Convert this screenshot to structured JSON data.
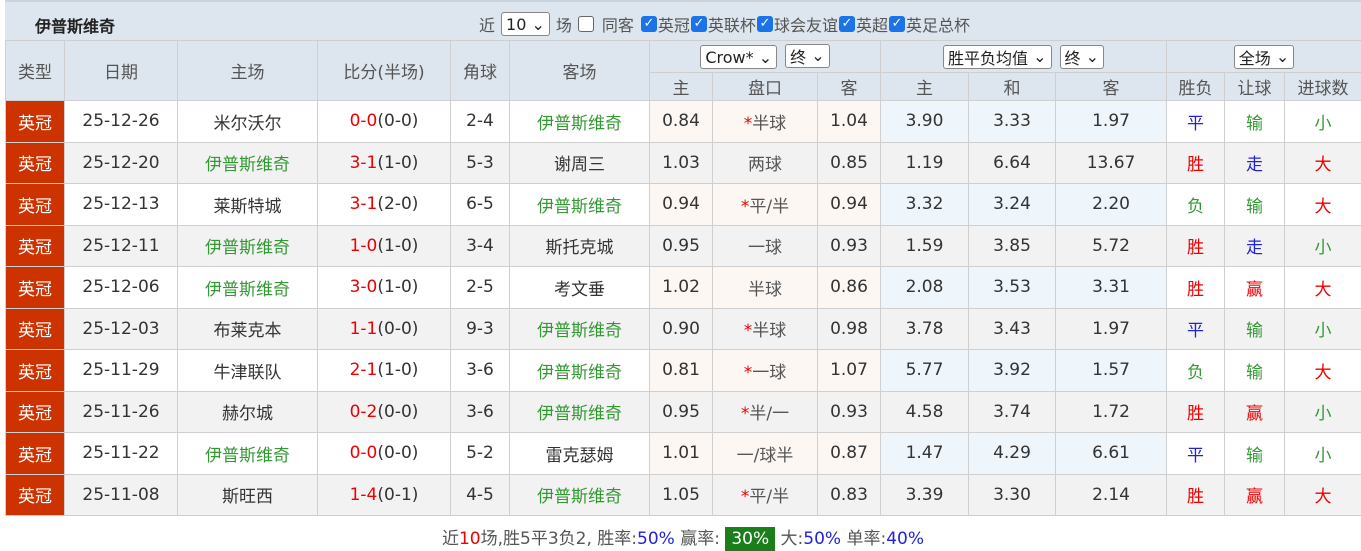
{
  "title": "伊普斯维奇",
  "filters": {
    "near": "近",
    "count": "10",
    "matches": "场",
    "same_away": "同客",
    "leagues": [
      {
        "label": "英冠",
        "checked": true
      },
      {
        "label": "英联杯",
        "checked": true
      },
      {
        "label": "球会友谊",
        "checked": true
      },
      {
        "label": "英超",
        "checked": true
      },
      {
        "label": "英足总杯",
        "checked": true
      }
    ]
  },
  "headers": {
    "type": "类型",
    "date": "日期",
    "home": "主场",
    "score": "比分(半场)",
    "corner": "角球",
    "away": "客场",
    "company": "Crow*",
    "odds_stage": "终",
    "euro": "胜平负均值",
    "euro_stage": "终",
    "scope": "全场",
    "sub": [
      "主",
      "盘口",
      "客",
      "主",
      "和",
      "客",
      "胜负",
      "让球",
      "进球数"
    ]
  },
  "colors": {
    "type_bg": "#cc3300",
    "team_highlight": "#339933",
    "win": "#e00000",
    "draw": "#2222dd",
    "lose": "#339933",
    "badge": "#1a7f1a"
  },
  "rows": [
    {
      "type": "英冠",
      "date": "25-12-26",
      "home": "米尔沃尔",
      "score": "0-0",
      "half": "(0-0)",
      "corner": "2-4",
      "away": "伊普斯维奇",
      "oh": "0.84",
      "star": "*",
      "hcp": "半球",
      "oa": "1.04",
      "eh": "3.90",
      "ed": "3.33",
      "ea": "1.97",
      "res": "平",
      "hres": "输",
      "goals": "小",
      "hl": "away"
    },
    {
      "type": "英冠",
      "date": "25-12-20",
      "home": "伊普斯维奇",
      "score": "3-1",
      "half": "(1-0)",
      "corner": "5-3",
      "away": "谢周三",
      "oh": "1.03",
      "star": "",
      "hcp": "两球",
      "oa": "0.85",
      "eh": "1.19",
      "ed": "6.64",
      "ea": "13.67",
      "res": "胜",
      "hres": "走",
      "goals": "大",
      "hl": "home"
    },
    {
      "type": "英冠",
      "date": "25-12-13",
      "home": "莱斯特城",
      "score": "3-1",
      "half": "(2-0)",
      "corner": "6-5",
      "away": "伊普斯维奇",
      "oh": "0.94",
      "star": "*",
      "hcp": "平/半",
      "oa": "0.94",
      "eh": "3.32",
      "ed": "3.24",
      "ea": "2.20",
      "res": "负",
      "hres": "输",
      "goals": "大",
      "hl": "away"
    },
    {
      "type": "英冠",
      "date": "25-12-11",
      "home": "伊普斯维奇",
      "score": "1-0",
      "half": "(1-0)",
      "corner": "3-4",
      "away": "斯托克城",
      "oh": "0.95",
      "star": "",
      "hcp": "一球",
      "oa": "0.93",
      "eh": "1.59",
      "ed": "3.85",
      "ea": "5.72",
      "res": "胜",
      "hres": "走",
      "goals": "小",
      "hl": "home"
    },
    {
      "type": "英冠",
      "date": "25-12-06",
      "home": "伊普斯维奇",
      "score": "3-0",
      "half": "(1-0)",
      "corner": "2-5",
      "away": "考文垂",
      "oh": "1.02",
      "star": "",
      "hcp": "半球",
      "oa": "0.86",
      "eh": "2.08",
      "ed": "3.53",
      "ea": "3.31",
      "res": "胜",
      "hres": "赢",
      "goals": "大",
      "hl": "home"
    },
    {
      "type": "英冠",
      "date": "25-12-03",
      "home": "布莱克本",
      "score": "1-1",
      "half": "(0-0)",
      "corner": "9-3",
      "away": "伊普斯维奇",
      "oh": "0.90",
      "star": "*",
      "hcp": "半球",
      "oa": "0.98",
      "eh": "3.78",
      "ed": "3.43",
      "ea": "1.97",
      "res": "平",
      "hres": "输",
      "goals": "小",
      "hl": "away"
    },
    {
      "type": "英冠",
      "date": "25-11-29",
      "home": "牛津联队",
      "score": "2-1",
      "half": "(1-0)",
      "corner": "3-6",
      "away": "伊普斯维奇",
      "oh": "0.81",
      "star": "*",
      "hcp": "一球",
      "oa": "1.07",
      "eh": "5.77",
      "ed": "3.92",
      "ea": "1.57",
      "res": "负",
      "hres": "输",
      "goals": "大",
      "hl": "away"
    },
    {
      "type": "英冠",
      "date": "25-11-26",
      "home": "赫尔城",
      "score": "0-2",
      "half": "(0-0)",
      "corner": "3-6",
      "away": "伊普斯维奇",
      "oh": "0.95",
      "star": "*",
      "hcp": "半/一",
      "oa": "0.93",
      "eh": "4.58",
      "ed": "3.74",
      "ea": "1.72",
      "res": "胜",
      "hres": "赢",
      "goals": "小",
      "hl": "away"
    },
    {
      "type": "英冠",
      "date": "25-11-22",
      "home": "伊普斯维奇",
      "score": "0-0",
      "half": "(0-0)",
      "corner": "5-2",
      "away": "雷克瑟姆",
      "oh": "1.01",
      "star": "",
      "hcp": "一/球半",
      "oa": "0.87",
      "eh": "1.47",
      "ed": "4.29",
      "ea": "6.61",
      "res": "平",
      "hres": "输",
      "goals": "小",
      "hl": "home"
    },
    {
      "type": "英冠",
      "date": "25-11-08",
      "home": "斯旺西",
      "score": "1-4",
      "half": "(0-1)",
      "corner": "4-5",
      "away": "伊普斯维奇",
      "oh": "1.05",
      "star": "*",
      "hcp": "平/半",
      "oa": "0.83",
      "eh": "3.39",
      "ed": "3.30",
      "ea": "2.14",
      "res": "胜",
      "hres": "赢",
      "goals": "大",
      "hl": "away"
    }
  ],
  "summary": {
    "p1": "近",
    "n": "10",
    "p2": "场,胜5平3负2, 胜率:",
    "win_rate": "50%",
    "p3": " 赢率:",
    "cover_rate": "30%",
    "p4": " 大:",
    "over_rate": "50%",
    "p5": " 单率:",
    "odd_rate": "40%"
  }
}
